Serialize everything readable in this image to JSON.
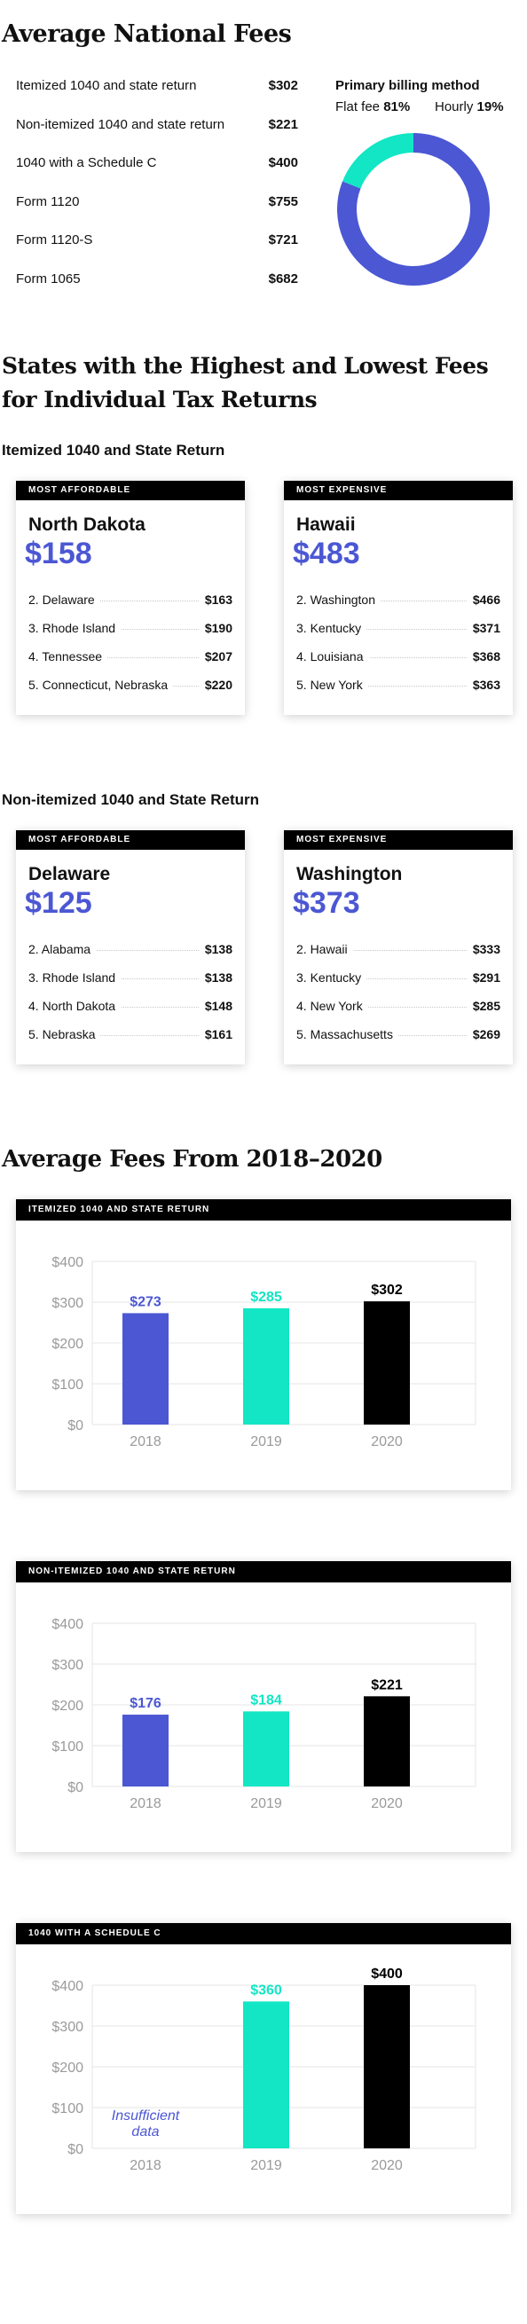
{
  "national": {
    "title": "Average National Fees",
    "rows": [
      {
        "label": "Itemized 1040 and state return",
        "value": "$302"
      },
      {
        "label": "Non-itemized 1040 and state return",
        "value": "$221"
      },
      {
        "label": "1040 with a Schedule C",
        "value": "$400"
      },
      {
        "label": "Form 1120",
        "value": "$755"
      },
      {
        "label": "Form 1120-S",
        "value": "$721"
      },
      {
        "label": "Form 1065",
        "value": "$682"
      }
    ],
    "billing": {
      "title": "Primary billing method",
      "flat_label": "Flat fee",
      "flat_value": "81%",
      "hourly_label": "Hourly",
      "hourly_value": "19%"
    }
  },
  "states": {
    "title_line1": "States with the Highest and Lowest Fees",
    "title_line2": "for Individual Tax Returns",
    "groups": [
      {
        "heading": "Itemized 1040 and State Return",
        "affordable": {
          "tag": "MOST AFFORDABLE",
          "state": "North Dakota",
          "value": "$158",
          "items": [
            {
              "name": "2. Delaware",
              "value": "$163"
            },
            {
              "name": "3. Rhode Island",
              "value": "$190"
            },
            {
              "name": "4. Tennessee",
              "value": "$207"
            },
            {
              "name": "5. Connecticut, Nebraska",
              "value": "$220"
            }
          ]
        },
        "expensive": {
          "tag": "MOST EXPENSIVE",
          "state": "Hawaii",
          "value": "$483",
          "items": [
            {
              "name": "2. Washington",
              "value": "$466"
            },
            {
              "name": "3. Kentucky",
              "value": "$371"
            },
            {
              "name": "4. Louisiana",
              "value": "$368"
            },
            {
              "name": "5. New York",
              "value": "$363"
            }
          ]
        }
      },
      {
        "heading": "Non-itemized 1040 and State Return",
        "affordable": {
          "tag": "MOST AFFORDABLE",
          "state": "Delaware",
          "value": "$125",
          "items": [
            {
              "name": "2. Alabama",
              "value": "$138"
            },
            {
              "name": "3. Rhode Island",
              "value": "$138"
            },
            {
              "name": "4. North Dakota",
              "value": "$148"
            },
            {
              "name": "5. Nebraska",
              "value": "$161"
            }
          ]
        },
        "expensive": {
          "tag": "MOST EXPENSIVE",
          "state": "Washington",
          "value": "$373",
          "items": [
            {
              "name": "2. Hawaii",
              "value": "$333"
            },
            {
              "name": "3. Kentucky",
              "value": "$291"
            },
            {
              "name": "4. New York",
              "value": "$285"
            },
            {
              "name": "5. Massachusetts",
              "value": "$269"
            }
          ]
        }
      }
    ]
  },
  "trends": {
    "title": "Average Fees From 2018–2020"
  },
  "colors": {
    "blue": "#4b57d3",
    "teal": "#12e6c4",
    "black": "#000000"
  },
  "chart_data": [
    {
      "type": "pie",
      "title": "Primary billing method",
      "categories": [
        "Flat fee",
        "Hourly"
      ],
      "values": [
        81,
        19
      ],
      "colors": [
        "#4b57d3",
        "#12e6c4"
      ]
    },
    {
      "type": "bar",
      "title": "ITEMIZED 1040 AND STATE RETURN",
      "categories": [
        "2018",
        "2019",
        "2020"
      ],
      "values": [
        273,
        285,
        302
      ],
      "labels": [
        "$273",
        "$285",
        "$302"
      ],
      "colors": [
        "#4b57d3",
        "#12e6c4",
        "#000000"
      ],
      "ylim": [
        0,
        400
      ],
      "yticks": [
        "$0",
        "$100",
        "$200",
        "$300",
        "$400"
      ],
      "grid": true
    },
    {
      "type": "bar",
      "title": "NON-ITEMIZED 1040 AND STATE RETURN",
      "categories": [
        "2018",
        "2019",
        "2020"
      ],
      "values": [
        176,
        184,
        221
      ],
      "labels": [
        "$176",
        "$184",
        "$221"
      ],
      "colors": [
        "#4b57d3",
        "#12e6c4",
        "#000000"
      ],
      "ylim": [
        0,
        400
      ],
      "yticks": [
        "$0",
        "$100",
        "$200",
        "$300",
        "$400"
      ],
      "grid": true
    },
    {
      "type": "bar",
      "title": "1040 WITH A SCHEDULE C",
      "categories": [
        "2018",
        "2019",
        "2020"
      ],
      "values": [
        null,
        360,
        400
      ],
      "labels": [
        "",
        "$360",
        "$400"
      ],
      "colors": [
        "#4b57d3",
        "#12e6c4",
        "#000000"
      ],
      "ylim": [
        0,
        400
      ],
      "yticks": [
        "$0",
        "$100",
        "$200",
        "$300",
        "$400"
      ],
      "grid": true,
      "annotation": "Insufficient data"
    }
  ]
}
